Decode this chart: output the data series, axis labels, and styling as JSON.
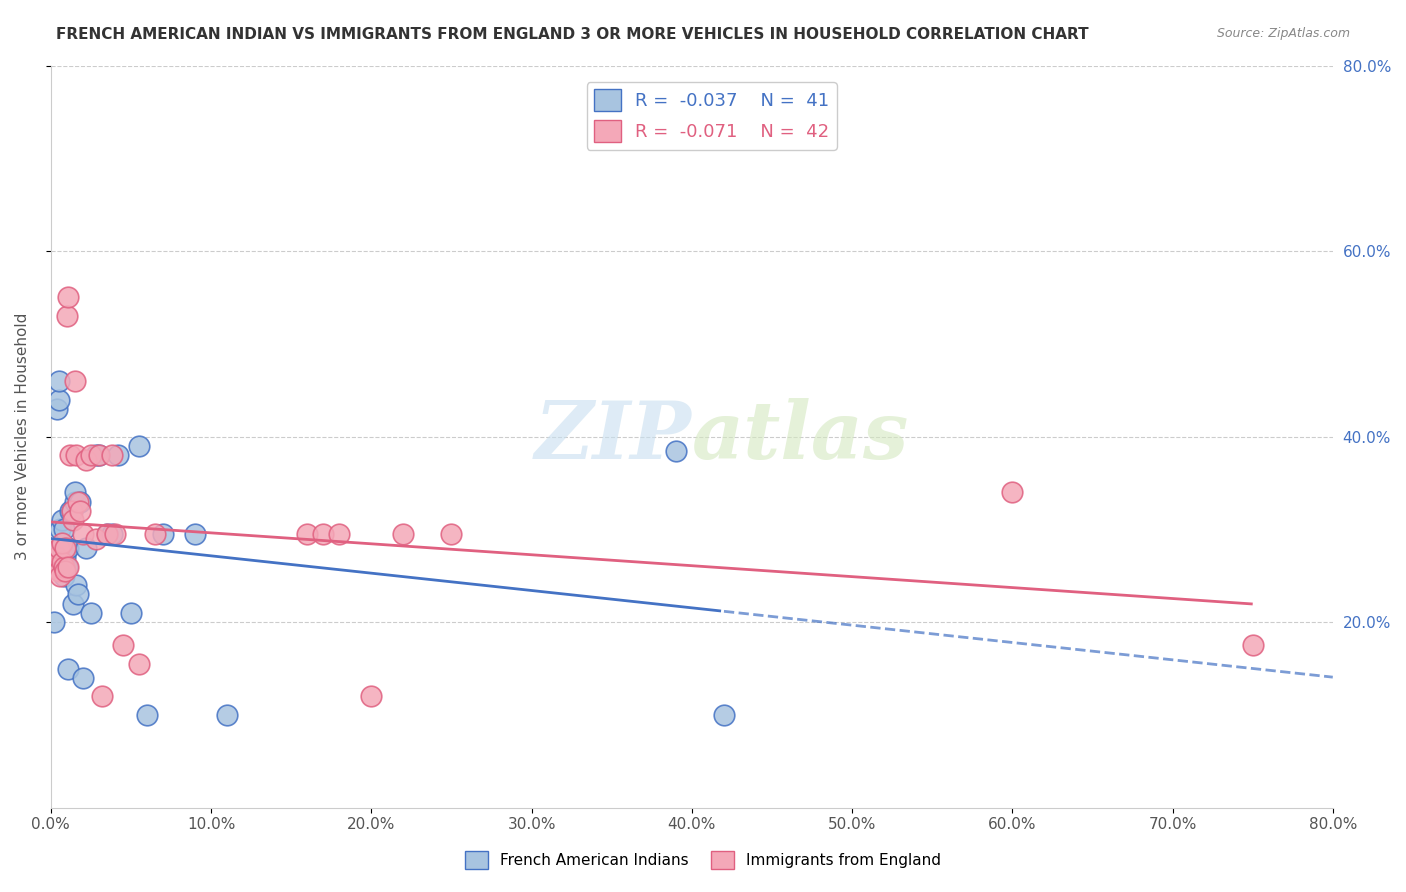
{
  "title": "FRENCH AMERICAN INDIAN VS IMMIGRANTS FROM ENGLAND 3 OR MORE VEHICLES IN HOUSEHOLD CORRELATION CHART",
  "source": "Source: ZipAtlas.com",
  "ylabel": "3 or more Vehicles in Household",
  "right_yticks": [
    "20.0%",
    "40.0%",
    "60.0%",
    "80.0%"
  ],
  "right_ytick_values": [
    0.2,
    0.4,
    0.6,
    0.8
  ],
  "xmin": 0.0,
  "xmax": 0.8,
  "ymin": 0.0,
  "ymax": 0.8,
  "legend_r1": "-0.037",
  "legend_n1": "41",
  "legend_r2": "-0.071",
  "legend_n2": "42",
  "legend_label1": "French American Indians",
  "legend_label2": "Immigrants from England",
  "color_blue": "#a8c4e0",
  "color_pink": "#f4a8b8",
  "line_blue": "#4472c4",
  "line_pink": "#e06080",
  "watermark_zip": "ZIP",
  "watermark_atlas": "atlas",
  "blue_points_x": [
    0.002,
    0.003,
    0.004,
    0.005,
    0.005,
    0.006,
    0.006,
    0.007,
    0.007,
    0.008,
    0.008,
    0.009,
    0.009,
    0.01,
    0.01,
    0.011,
    0.011,
    0.012,
    0.013,
    0.014,
    0.015,
    0.015,
    0.016,
    0.017,
    0.018,
    0.02,
    0.022,
    0.025,
    0.028,
    0.03,
    0.035,
    0.038,
    0.042,
    0.05,
    0.055,
    0.06,
    0.07,
    0.09,
    0.11,
    0.39,
    0.42
  ],
  "blue_points_y": [
    0.2,
    0.27,
    0.43,
    0.44,
    0.46,
    0.28,
    0.3,
    0.27,
    0.31,
    0.25,
    0.3,
    0.26,
    0.27,
    0.26,
    0.28,
    0.15,
    0.28,
    0.32,
    0.32,
    0.22,
    0.33,
    0.34,
    0.24,
    0.23,
    0.33,
    0.14,
    0.28,
    0.21,
    0.38,
    0.38,
    0.295,
    0.295,
    0.38,
    0.21,
    0.39,
    0.1,
    0.295,
    0.295,
    0.1,
    0.385,
    0.1
  ],
  "pink_points_x": [
    0.001,
    0.002,
    0.003,
    0.004,
    0.005,
    0.005,
    0.006,
    0.007,
    0.007,
    0.008,
    0.009,
    0.009,
    0.01,
    0.011,
    0.011,
    0.012,
    0.013,
    0.014,
    0.015,
    0.016,
    0.017,
    0.018,
    0.02,
    0.022,
    0.025,
    0.028,
    0.03,
    0.032,
    0.035,
    0.038,
    0.04,
    0.045,
    0.055,
    0.065,
    0.16,
    0.17,
    0.18,
    0.2,
    0.22,
    0.25,
    0.6,
    0.75
  ],
  "pink_points_y": [
    0.26,
    0.26,
    0.26,
    0.27,
    0.255,
    0.28,
    0.25,
    0.265,
    0.285,
    0.26,
    0.255,
    0.28,
    0.53,
    0.55,
    0.26,
    0.38,
    0.32,
    0.31,
    0.46,
    0.38,
    0.33,
    0.32,
    0.295,
    0.375,
    0.38,
    0.29,
    0.38,
    0.12,
    0.295,
    0.38,
    0.295,
    0.175,
    0.155,
    0.295,
    0.295,
    0.295,
    0.295,
    0.12,
    0.295,
    0.295,
    0.34,
    0.175
  ]
}
